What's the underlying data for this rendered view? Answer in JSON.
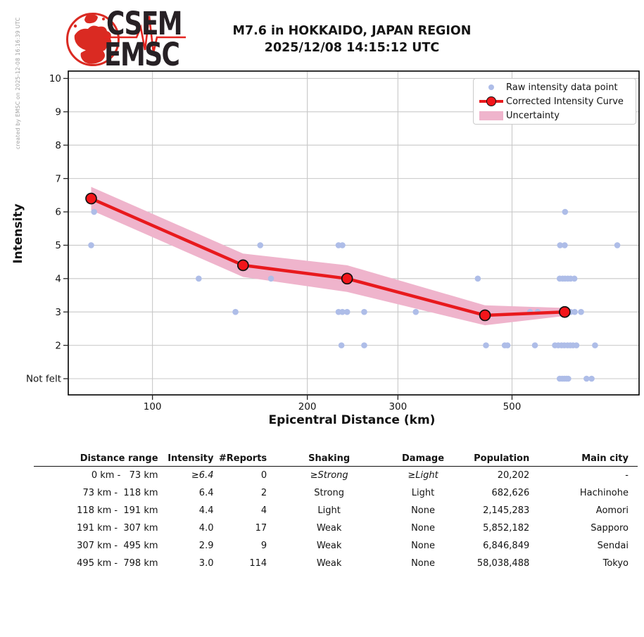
{
  "credit": "created by EMSC on 2025-12-08 16:16:39 UTC",
  "logo": {
    "line1": "CSEM",
    "line2": "EMSC"
  },
  "title": {
    "line1": "M7.6 in HOKKAIDO, JAPAN REGION",
    "line2": "2025/12/08 14:15:12 UTC"
  },
  "chart_data": {
    "type": "line",
    "title": "",
    "xlabel": "Epicentral Distance (km)",
    "ylabel": "Intensity",
    "x_scale": "log",
    "xlim": [
      68.6,
      883.0
    ],
    "ylim": [
      0.515,
      10.22
    ],
    "xticks": [
      100,
      200,
      300,
      500
    ],
    "yticks": {
      "values": [
        1,
        2,
        3,
        4,
        5,
        6,
        7,
        8,
        9,
        10
      ],
      "labels": [
        "Not felt",
        "2",
        "3",
        "4",
        "5",
        "6",
        "7",
        "8",
        "9",
        "10"
      ]
    },
    "grid": true,
    "legend_position": "upper right",
    "legend": [
      {
        "label": "Raw intensity data point",
        "type": "scatter",
        "color": "#aebde8"
      },
      {
        "label": "Corrected Intensity Curve",
        "type": "line",
        "color": "#e8191d"
      },
      {
        "label": "Uncertainty",
        "type": "band",
        "color": "#efb4cc"
      }
    ],
    "corrected_curve": {
      "name": "Corrected Intensity Curve",
      "color": "#e8191d",
      "marker_color": "#f3151a",
      "x_km": [
        76,
        150,
        239,
        443,
        633
      ],
      "intensity": [
        6.4,
        4.4,
        4.0,
        2.9,
        3.0
      ],
      "uncertainty": [
        0.35,
        0.35,
        0.4,
        0.3,
        0.12
      ]
    },
    "raw_points": {
      "name": "Raw intensity data point",
      "color": "#aebde8",
      "points": [
        [
          77,
          6
        ],
        [
          634,
          6
        ],
        [
          76,
          5
        ],
        [
          162,
          5
        ],
        [
          230,
          5
        ],
        [
          234,
          5
        ],
        [
          620,
          5
        ],
        [
          633,
          5
        ],
        [
          801,
          5
        ],
        [
          123,
          4
        ],
        [
          170,
          4
        ],
        [
          429,
          4
        ],
        [
          619,
          4
        ],
        [
          627,
          4
        ],
        [
          634,
          4
        ],
        [
          642,
          4
        ],
        [
          650,
          4
        ],
        [
          661,
          4
        ],
        [
          145,
          3
        ],
        [
          230,
          3
        ],
        [
          234,
          3
        ],
        [
          239,
          3
        ],
        [
          258,
          3
        ],
        [
          325,
          3
        ],
        [
          542,
          3
        ],
        [
          561,
          3
        ],
        [
          650,
          3
        ],
        [
          662,
          3
        ],
        [
          681,
          3
        ],
        [
          233,
          2
        ],
        [
          258,
          2
        ],
        [
          445,
          2
        ],
        [
          484,
          2
        ],
        [
          490,
          2
        ],
        [
          554,
          2
        ],
        [
          606,
          2
        ],
        [
          615,
          2
        ],
        [
          624,
          2
        ],
        [
          632,
          2
        ],
        [
          641,
          2
        ],
        [
          649,
          2
        ],
        [
          657,
          2
        ],
        [
          667,
          2
        ],
        [
          725,
          2
        ],
        [
          619,
          1
        ],
        [
          626,
          1
        ],
        [
          632,
          1
        ],
        [
          638,
          1
        ],
        [
          643,
          1
        ],
        [
          698,
          1
        ],
        [
          714,
          1
        ]
      ]
    }
  },
  "table": {
    "headers": [
      "Distance range",
      "Intensity",
      "#Reports",
      "Shaking",
      "Damage",
      "Population",
      "Main city"
    ],
    "rows": [
      {
        "range": "0 km -   73 km",
        "intensity": "≥6.4",
        "reports": "0",
        "shaking": "≥Strong",
        "damage": "≥Light",
        "population": "20,202",
        "city": "-"
      },
      {
        "range": "73 km -  118 km",
        "intensity": "6.4",
        "reports": "2",
        "shaking": "Strong",
        "damage": "Light",
        "population": "682,626",
        "city": "Hachinohe"
      },
      {
        "range": "118 km -  191 km",
        "intensity": "4.4",
        "reports": "4",
        "shaking": "Light",
        "damage": "None",
        "population": "2,145,283",
        "city": "Aomori"
      },
      {
        "range": "191 km -  307 km",
        "intensity": "4.0",
        "reports": "17",
        "shaking": "Weak",
        "damage": "None",
        "population": "5,852,182",
        "city": "Sapporo"
      },
      {
        "range": "307 km -  495 km",
        "intensity": "2.9",
        "reports": "9",
        "shaking": "Weak",
        "damage": "None",
        "population": "6,846,849",
        "city": "Sendai"
      },
      {
        "range": "495 km -  798 km",
        "intensity": "3.0",
        "reports": "114",
        "shaking": "Weak",
        "damage": "None",
        "population": "58,038,488",
        "city": "Tokyo"
      }
    ]
  },
  "colors": {
    "curve": "#e8191d",
    "marker": "#f3151a",
    "band": "#efb4cc",
    "raw_point": "#aebde8",
    "grid": "#c8c8c8",
    "axis": "#000000",
    "tick": "#262626",
    "logo_red": "#da2a22",
    "logo_dark": "#272125",
    "credit_gray": "#a0a0a0"
  }
}
